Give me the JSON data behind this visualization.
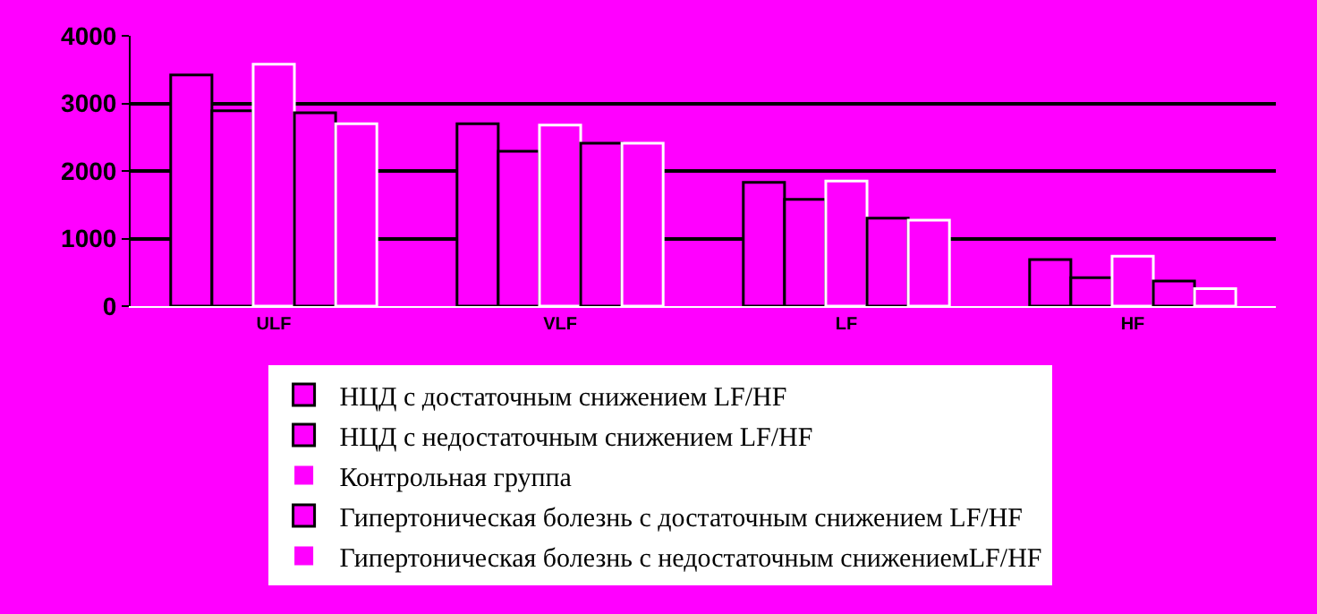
{
  "chart_data": {
    "type": "bar",
    "categories": [
      "ULF",
      "VLF",
      "LF",
      "HF"
    ],
    "series": [
      {
        "name": "НЦД с достаточным снижением LF/HF",
        "color": "#ff00ff",
        "values": [
          3420,
          2700,
          1830,
          690
        ]
      },
      {
        "name": "НЦД с недостаточным снижением LF/HF",
        "color": "#ff00ff",
        "values": [
          2890,
          2290,
          1580,
          420
        ]
      },
      {
        "name": "Контрольная группа",
        "color": "#ff00ff",
        "values": [
          3580,
          2680,
          1850,
          740
        ]
      },
      {
        "name": "Гипертоническая болезнь с достаточным снижением LF/HF",
        "color": "#ff00ff",
        "values": [
          2860,
          2410,
          1300,
          370
        ]
      },
      {
        "name": "Гипертоническая болезнь с недостаточным снижениемLF/HF",
        "color": "#ff00ff",
        "values": [
          2700,
          2410,
          1270,
          260
        ]
      }
    ],
    "ylim": [
      0,
      4000
    ],
    "yticks": [
      0,
      1000,
      2000,
      3000,
      4000
    ],
    "grid": "y",
    "legend": "bottom"
  }
}
